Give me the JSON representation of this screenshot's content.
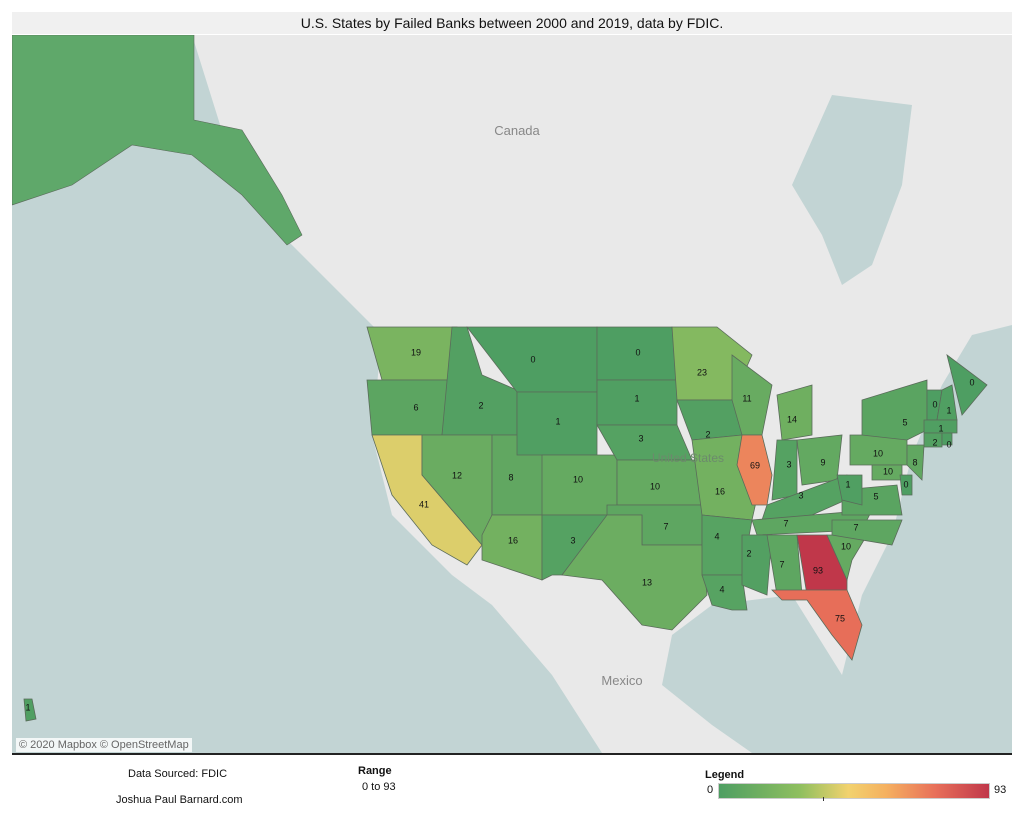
{
  "title": "U.S. States by Failed Banks between 2000 and 2019, data by FDIC.",
  "map": {
    "place_labels": [
      "Canada",
      "United States",
      "Mexico"
    ],
    "attribution": "© 2020 Mapbox © OpenStreetMap",
    "colors": {
      "water": "#c2d4d4",
      "land": "#e9e9e9",
      "low": "#4e9e62",
      "mid": "#f2d26e",
      "high": "#c0374a",
      "border": "#5a6b5a"
    },
    "state_values": [
      19,
      6,
      41,
      2,
      12,
      8,
      16,
      0,
      1,
      10,
      3,
      0,
      1,
      3,
      10,
      7,
      13,
      23,
      2,
      16,
      4,
      4,
      11,
      69,
      14,
      3,
      9,
      3,
      7,
      2,
      7,
      93,
      75,
      10,
      7,
      5,
      1,
      10,
      5,
      0,
      0,
      1,
      1,
      2,
      0,
      8,
      10,
      0,
      1
    ]
  },
  "footer": {
    "source": "Data Sourced:  FDIC",
    "author": "Joshua Paul Barnard.com",
    "range_title": "Range",
    "range_value": "0 to 93"
  },
  "legend": {
    "title": "Legend",
    "min": "0",
    "max": "93"
  }
}
